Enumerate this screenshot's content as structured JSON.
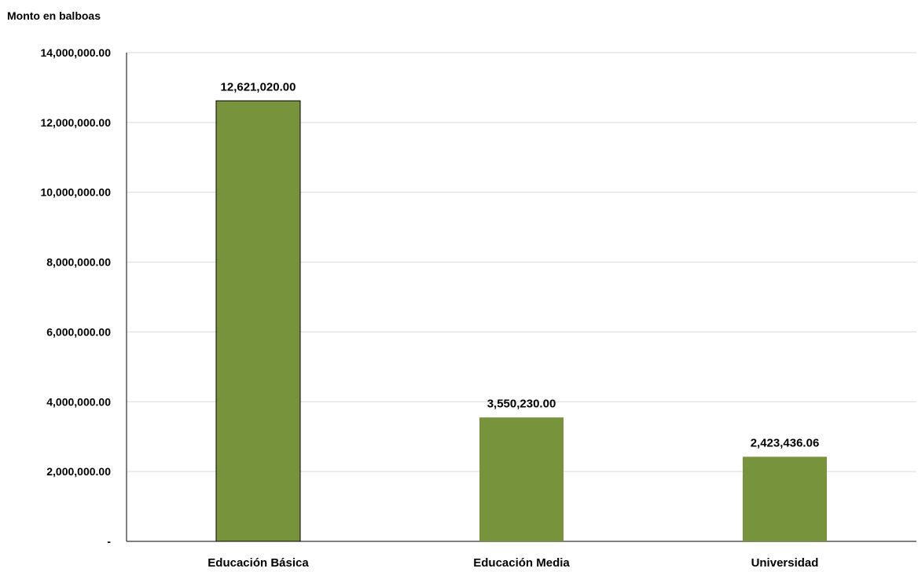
{
  "chart_data": {
    "type": "bar",
    "ylabel": "Monto en balboas",
    "xlabel": "",
    "title": "",
    "categories": [
      "Educación Básica",
      "Educación Media",
      "Universidad"
    ],
    "values": [
      12621020.0,
      3550230.0,
      2423436.06
    ],
    "value_labels": [
      "12,621,020.00",
      "3,550,230.00",
      "2,423,436.06"
    ],
    "ylim": [
      0,
      14000000
    ],
    "yticks": [
      0,
      2000000,
      4000000,
      6000000,
      8000000,
      10000000,
      12000000,
      14000000
    ],
    "ytick_labels": [
      "-",
      "2,000,000.00",
      "4,000,000.00",
      "6,000,000.00",
      "8,000,000.00",
      "10,000,000.00",
      "12,000,000.00",
      "14,000,000.00"
    ],
    "grid": true,
    "colors": {
      "bar": "#77933c",
      "grid": "#d9d9d9",
      "axis": "#000000"
    }
  }
}
